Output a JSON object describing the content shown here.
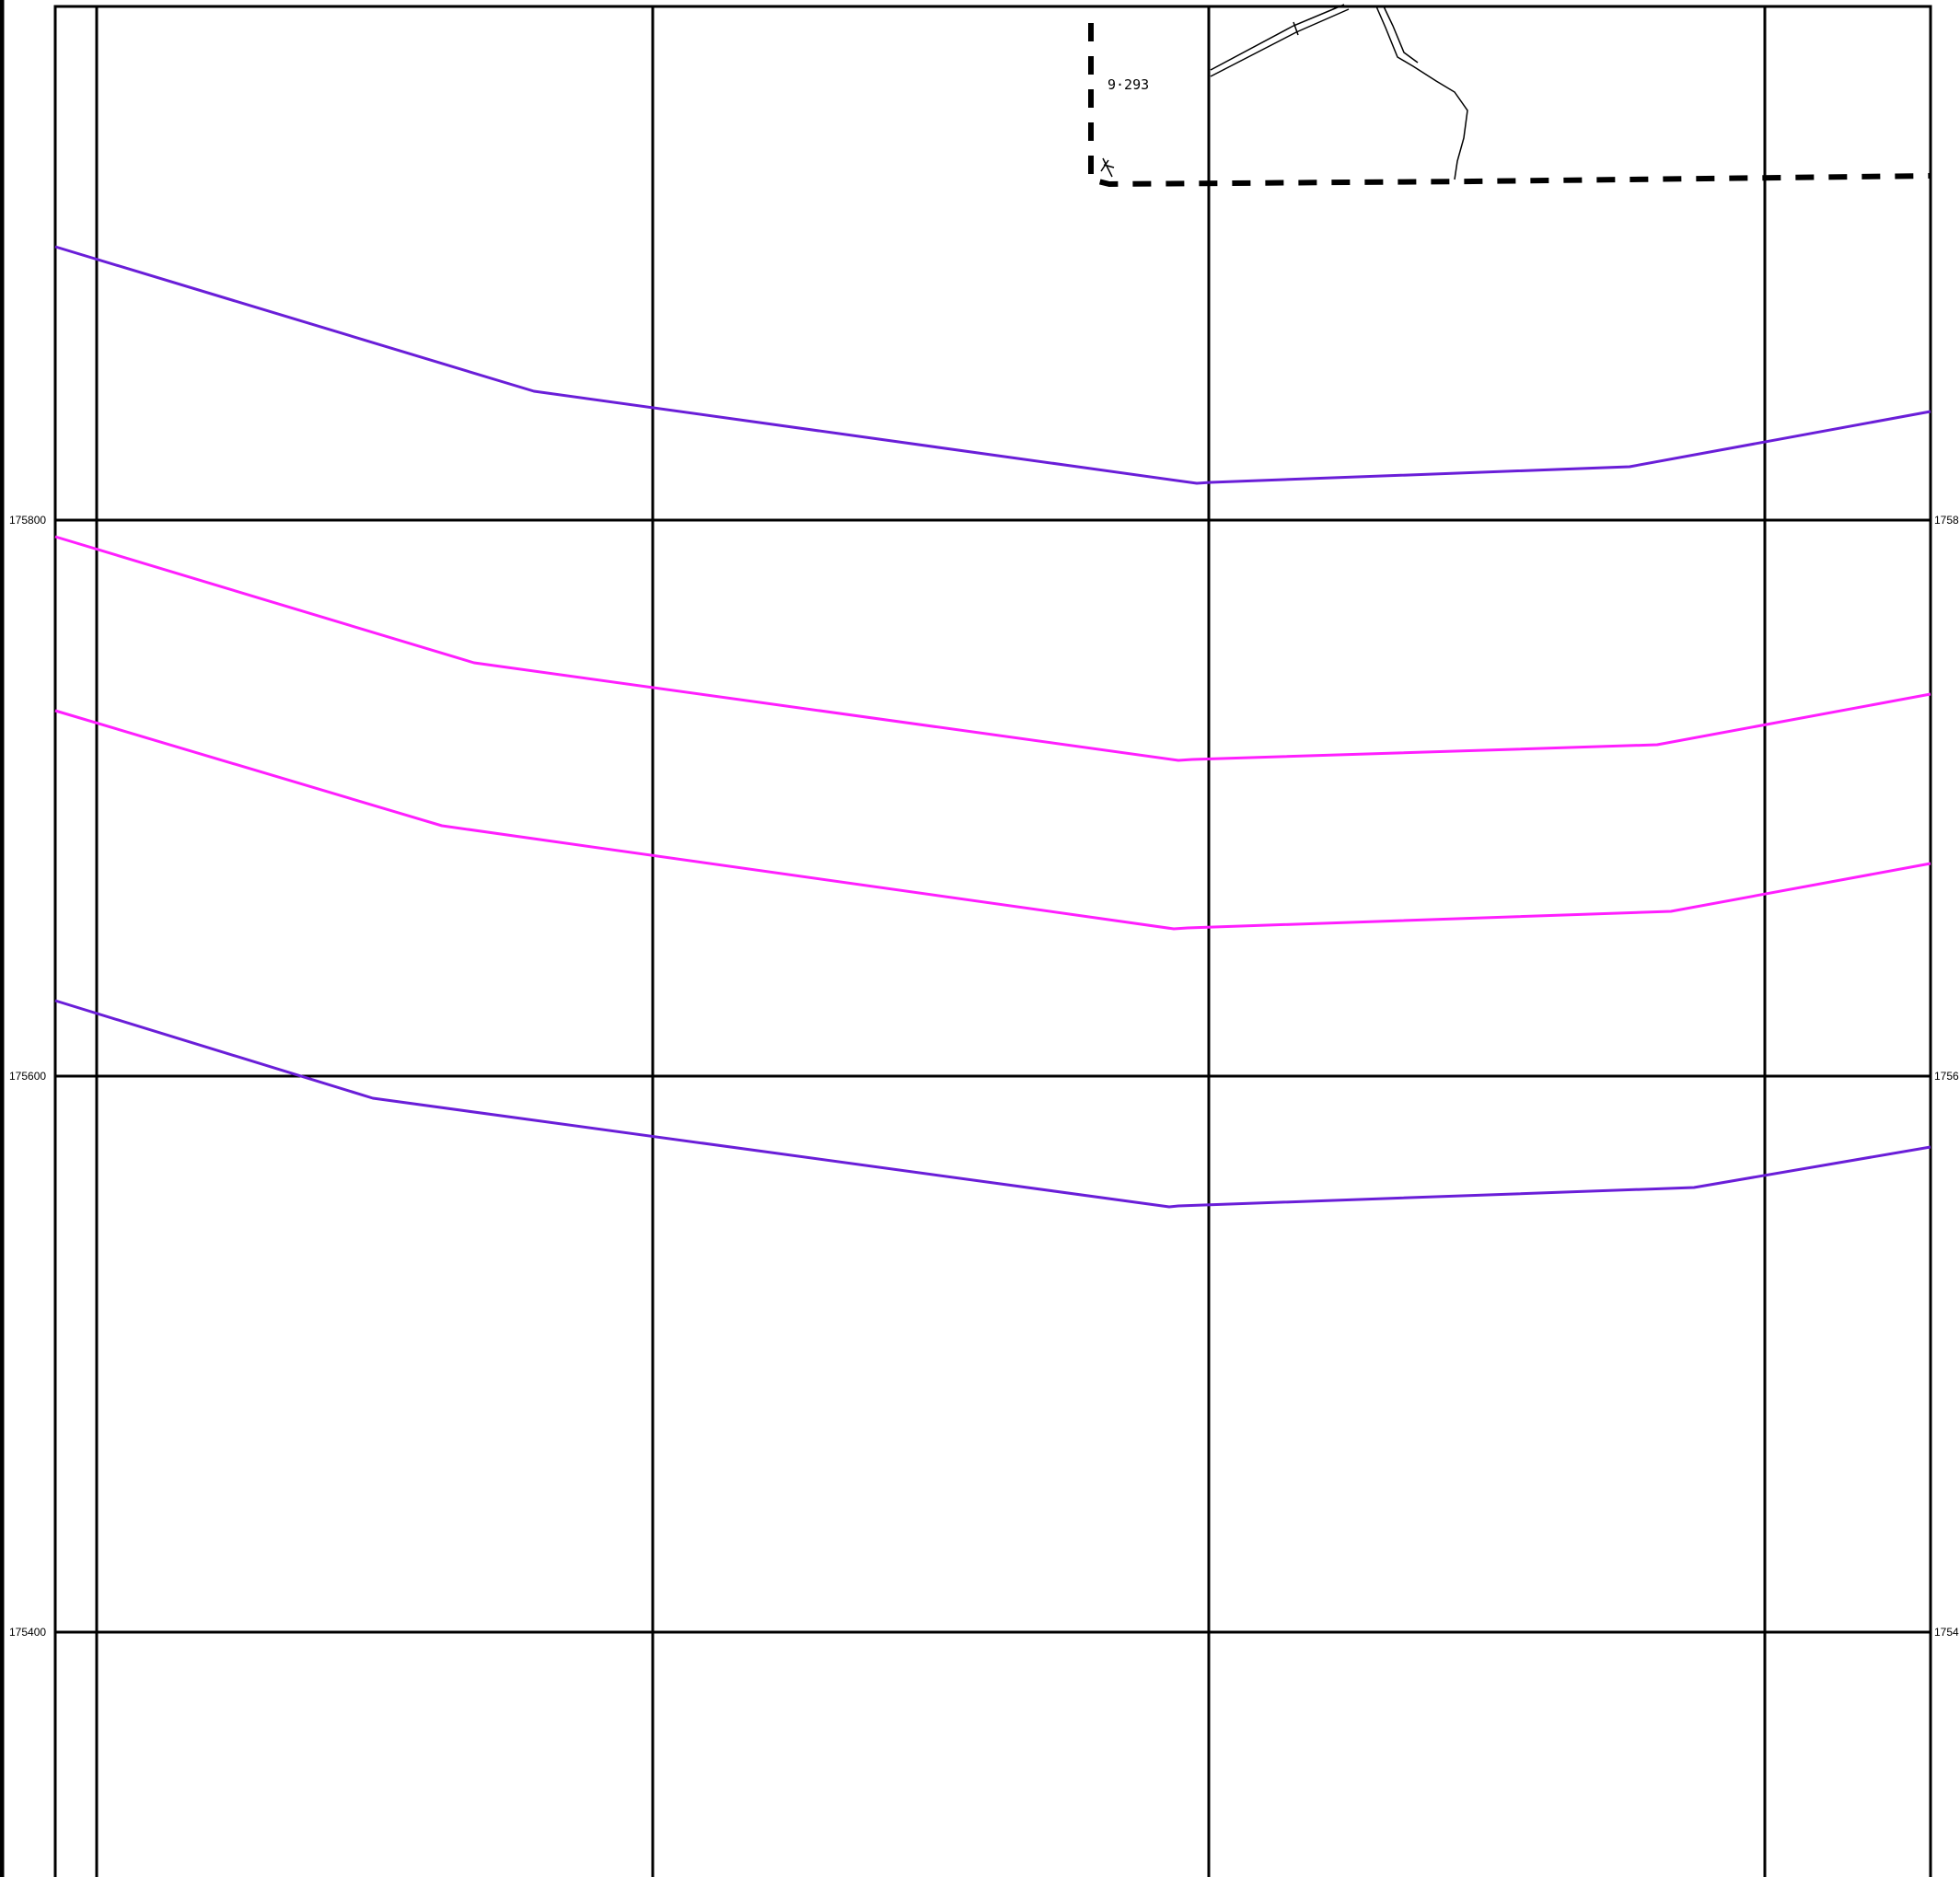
{
  "map": {
    "grid_labels": {
      "left": [
        "175800",
        "175600",
        "175400"
      ],
      "right": [
        "1758",
        "1756",
        "1754"
      ]
    },
    "parcel_label": "9·293",
    "colors": {
      "grid": "#000000",
      "background": "#ffffff",
      "outer_contour": "#6a1ed8",
      "inner_contour": "#ff1fff"
    },
    "line_styles": {
      "boundary": "dashed",
      "contours": "solid"
    }
  }
}
